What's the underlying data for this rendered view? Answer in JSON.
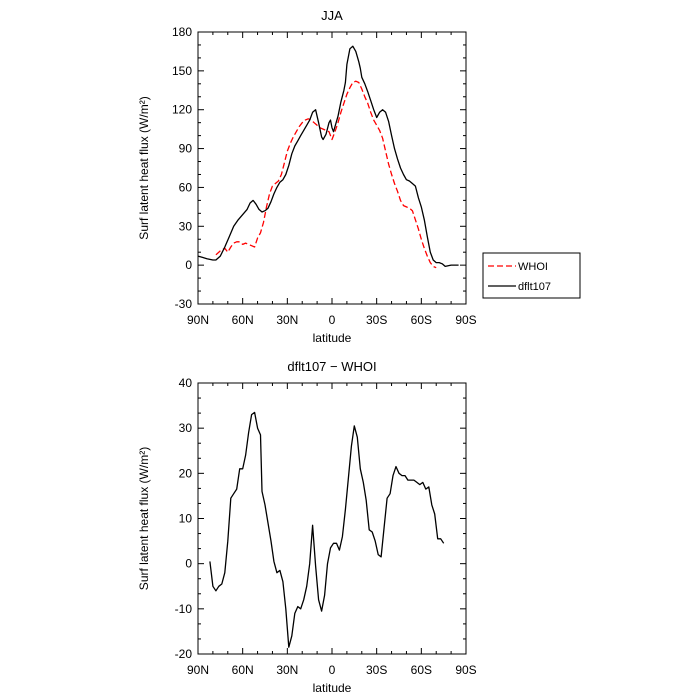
{
  "chart_data": [
    {
      "type": "line",
      "title": "JJA",
      "xlabel": "latitude",
      "ylabel": "Surf latent heat flux (W/m²)",
      "xlim": [
        90,
        -90
      ],
      "ylim": [
        -30,
        180
      ],
      "xticks": [
        90,
        60,
        30,
        0,
        -30,
        -60,
        -90
      ],
      "xtick_labels": [
        "90N",
        "60N",
        "30N",
        "0",
        "30S",
        "60S",
        "90S"
      ],
      "yticks": [
        -30,
        0,
        30,
        60,
        90,
        120,
        150,
        180
      ],
      "ytick_labels": [
        "-30",
        "0",
        "30",
        "60",
        "90",
        "120",
        "150",
        "180"
      ],
      "grid": false,
      "legend_position": "right",
      "series": [
        {
          "name": "WHOI",
          "color": "#ff0000",
          "dash": "dashed",
          "points": [
            [
              78,
              8
            ],
            [
              75,
              11
            ],
            [
              72,
              13
            ],
            [
              70,
              10
            ],
            [
              68,
              14
            ],
            [
              66,
              17
            ],
            [
              64,
              18
            ],
            [
              62,
              18
            ],
            [
              60,
              16
            ],
            [
              58,
              17
            ],
            [
              56,
              16
            ],
            [
              54,
              15
            ],
            [
              52,
              14
            ],
            [
              50,
              21
            ],
            [
              48,
              25
            ],
            [
              46,
              33
            ],
            [
              44,
              45
            ],
            [
              42,
              55
            ],
            [
              40,
              61
            ],
            [
              38,
              63
            ],
            [
              36,
              65
            ],
            [
              34,
              70
            ],
            [
              32,
              79
            ],
            [
              30,
              88
            ],
            [
              28,
              94
            ],
            [
              26,
              99
            ],
            [
              24,
              103
            ],
            [
              22,
              107
            ],
            [
              20,
              110
            ],
            [
              18,
              112
            ],
            [
              16,
              113
            ],
            [
              14,
              112
            ],
            [
              12,
              110
            ],
            [
              10,
              108
            ],
            [
              8,
              106
            ],
            [
              6,
              105
            ],
            [
              4,
              104
            ],
            [
              2,
              103
            ],
            [
              0,
              97
            ],
            [
              -2,
              103
            ],
            [
              -4,
              110
            ],
            [
              -6,
              118
            ],
            [
              -8,
              125
            ],
            [
              -10,
              132
            ],
            [
              -12,
              137
            ],
            [
              -14,
              141
            ],
            [
              -16,
              142
            ],
            [
              -18,
              141
            ],
            [
              -20,
              136
            ],
            [
              -22,
              130
            ],
            [
              -24,
              125
            ],
            [
              -26,
              118
            ],
            [
              -28,
              112
            ],
            [
              -30,
              108
            ],
            [
              -32,
              104
            ],
            [
              -34,
              98
            ],
            [
              -36,
              88
            ],
            [
              -38,
              78
            ],
            [
              -40,
              70
            ],
            [
              -42,
              63
            ],
            [
              -44,
              57
            ],
            [
              -46,
              50
            ],
            [
              -48,
              46
            ],
            [
              -50,
              45
            ],
            [
              -52,
              44
            ],
            [
              -54,
              42
            ],
            [
              -56,
              35
            ],
            [
              -58,
              28
            ],
            [
              -60,
              20
            ],
            [
              -62,
              13
            ],
            [
              -64,
              7
            ],
            [
              -66,
              2
            ],
            [
              -68,
              -1
            ],
            [
              -70,
              -2
            ]
          ]
        },
        {
          "name": "dflt107",
          "color": "#000000",
          "dash": "solid",
          "points": [
            [
              90,
              7
            ],
            [
              87,
              6
            ],
            [
              84,
              5
            ],
            [
              80,
              4
            ],
            [
              78,
              4
            ],
            [
              75,
              7
            ],
            [
              72,
              14
            ],
            [
              69,
              22
            ],
            [
              66,
              30
            ],
            [
              63,
              35
            ],
            [
              60,
              39
            ],
            [
              57,
              43
            ],
            [
              55,
              48
            ],
            [
              53,
              50
            ],
            [
              51,
              47
            ],
            [
              49,
              43
            ],
            [
              47,
              41
            ],
            [
              45,
              42
            ],
            [
              43,
              44
            ],
            [
              41,
              49
            ],
            [
              39,
              55
            ],
            [
              37,
              60
            ],
            [
              35,
              64
            ],
            [
              33,
              66
            ],
            [
              31,
              70
            ],
            [
              29,
              77
            ],
            [
              27,
              86
            ],
            [
              25,
              92
            ],
            [
              23,
              96
            ],
            [
              21,
              100
            ],
            [
              19,
              104
            ],
            [
              17,
              108
            ],
            [
              15,
              112
            ],
            [
              13,
              118
            ],
            [
              11,
              120
            ],
            [
              9,
              110
            ],
            [
              7,
              99
            ],
            [
              6,
              97
            ],
            [
              4,
              101
            ],
            [
              2,
              110
            ],
            [
              1,
              112
            ],
            [
              0,
              106
            ],
            [
              -1,
              103
            ],
            [
              -2,
              107
            ],
            [
              -4,
              115
            ],
            [
              -6,
              126
            ],
            [
              -8,
              135
            ],
            [
              -9,
              141
            ],
            [
              -10,
              155
            ],
            [
              -12,
              167
            ],
            [
              -14,
              169
            ],
            [
              -16,
              165
            ],
            [
              -18,
              157
            ],
            [
              -19,
              152
            ],
            [
              -20,
              145
            ],
            [
              -22,
              140
            ],
            [
              -24,
              134
            ],
            [
              -26,
              127
            ],
            [
              -28,
              120
            ],
            [
              -30,
              114
            ],
            [
              -32,
              118
            ],
            [
              -34,
              120
            ],
            [
              -36,
              118
            ],
            [
              -38,
              111
            ],
            [
              -40,
              100
            ],
            [
              -42,
              90
            ],
            [
              -44,
              82
            ],
            [
              -46,
              75
            ],
            [
              -48,
              70
            ],
            [
              -50,
              66
            ],
            [
              -52,
              65
            ],
            [
              -54,
              63
            ],
            [
              -56,
              61
            ],
            [
              -58,
              52
            ],
            [
              -60,
              45
            ],
            [
              -62,
              35
            ],
            [
              -64,
              22
            ],
            [
              -66,
              10
            ],
            [
              -68,
              4
            ],
            [
              -70,
              2
            ],
            [
              -72,
              2
            ],
            [
              -74,
              1
            ],
            [
              -76,
              -1
            ],
            [
              -80,
              0
            ],
            [
              -85,
              0
            ]
          ]
        }
      ]
    },
    {
      "type": "line",
      "title": "dflt107 − WHOI",
      "xlabel": "latitude",
      "ylabel": "Surf latent heat flux (W/m²)",
      "xlim": [
        90,
        -90
      ],
      "ylim": [
        -20,
        40
      ],
      "xticks": [
        90,
        60,
        30,
        0,
        -30,
        -60,
        -90
      ],
      "xtick_labels": [
        "90N",
        "60N",
        "30N",
        "0",
        "30S",
        "60S",
        "90S"
      ],
      "yticks": [
        -20,
        -10,
        0,
        10,
        20,
        30,
        40
      ],
      "ytick_labels": [
        "-20",
        "-10",
        "0",
        "10",
        "20",
        "30",
        "40"
      ],
      "grid": false,
      "series": [
        {
          "color": "#000000",
          "dash": "solid",
          "points": [
            [
              82,
              0.5
            ],
            [
              80,
              -5
            ],
            [
              78,
              -6
            ],
            [
              76,
              -5
            ],
            [
              74,
              -4.5
            ],
            [
              72,
              -2
            ],
            [
              70,
              5
            ],
            [
              68,
              14.5
            ],
            [
              66,
              15.5
            ],
            [
              64,
              16.5
            ],
            [
              62,
              21
            ],
            [
              60,
              21
            ],
            [
              58,
              24
            ],
            [
              56,
              29
            ],
            [
              54,
              33
            ],
            [
              52,
              33.5
            ],
            [
              50,
              30
            ],
            [
              48,
              28.5
            ],
            [
              47,
              16
            ],
            [
              45,
              13
            ],
            [
              43,
              9
            ],
            [
              41,
              5
            ],
            [
              39,
              0.5
            ],
            [
              37,
              -2
            ],
            [
              35,
              -1.5
            ],
            [
              33,
              -4
            ],
            [
              31,
              -10
            ],
            [
              29,
              -18.5
            ],
            [
              27,
              -16
            ],
            [
              25,
              -11
            ],
            [
              23,
              -9.5
            ],
            [
              21,
              -10
            ],
            [
              19,
              -8
            ],
            [
              17,
              -5
            ],
            [
              15,
              0
            ],
            [
              13,
              8.5
            ],
            [
              11,
              -0.5
            ],
            [
              9,
              -8
            ],
            [
              7,
              -10.5
            ],
            [
              5,
              -7
            ],
            [
              3,
              0
            ],
            [
              1,
              3.5
            ],
            [
              -1,
              4.5
            ],
            [
              -3,
              4.5
            ],
            [
              -5,
              3
            ],
            [
              -7,
              6
            ],
            [
              -9,
              12
            ],
            [
              -11,
              19
            ],
            [
              -13,
              26
            ],
            [
              -15,
              30.5
            ],
            [
              -17,
              28
            ],
            [
              -19,
              21
            ],
            [
              -21,
              18
            ],
            [
              -23,
              14
            ],
            [
              -25,
              7.5
            ],
            [
              -27,
              7
            ],
            [
              -29,
              5
            ],
            [
              -31,
              2
            ],
            [
              -33,
              1.5
            ],
            [
              -35,
              8
            ],
            [
              -37,
              14.5
            ],
            [
              -39,
              15.5
            ],
            [
              -41,
              19.5
            ],
            [
              -43,
              21.5
            ],
            [
              -45,
              20
            ],
            [
              -47,
              19.5
            ],
            [
              -49,
              19.5
            ],
            [
              -51,
              18.5
            ],
            [
              -53,
              18.5
            ],
            [
              -55,
              18.5
            ],
            [
              -57,
              18
            ],
            [
              -59,
              17.5
            ],
            [
              -61,
              18
            ],
            [
              -63,
              16.5
            ],
            [
              -65,
              17
            ],
            [
              -67,
              13
            ],
            [
              -69,
              11
            ],
            [
              -71,
              5.5
            ],
            [
              -73,
              5.5
            ],
            [
              -75,
              4.5
            ]
          ]
        }
      ]
    }
  ]
}
